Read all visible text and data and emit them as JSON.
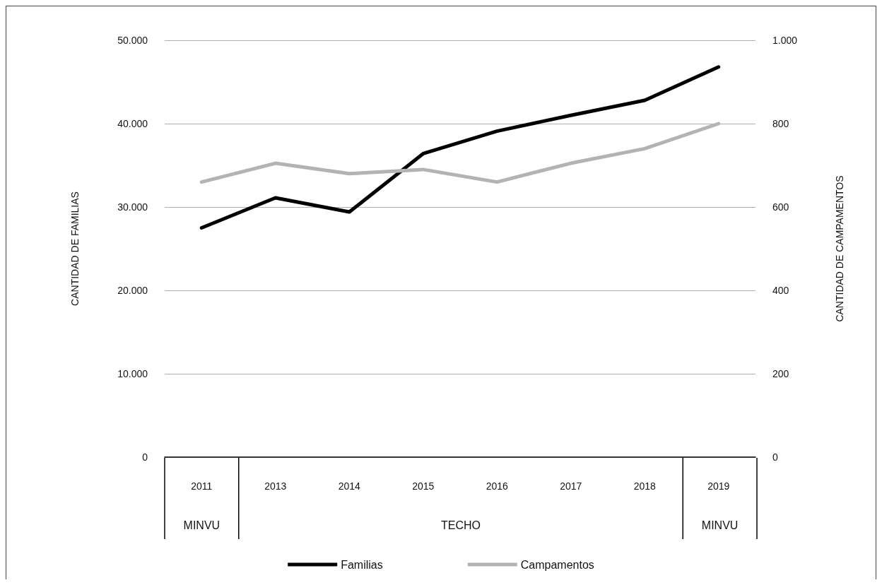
{
  "chart_data": {
    "type": "line",
    "ylabel": "CANTIDAD DE FAMILIAS",
    "y2label": "CANTIDAD DE CAMPAMENTOS",
    "categories": [
      "2011",
      "2013",
      "2014",
      "2015",
      "2016",
      "2017",
      "2018",
      "2019"
    ],
    "series": [
      {
        "name": "Familias",
        "color": "#000000",
        "values": [
          27500,
          31100,
          29400,
          36400,
          39100,
          41000,
          42800,
          46800
        ]
      },
      {
        "name": "Campamentos",
        "color": "#b3b3b3",
        "axis": "y2",
        "values": [
          660,
          705,
          680,
          690,
          660,
          705,
          740,
          800
        ]
      }
    ],
    "ylim": [
      0,
      50000
    ],
    "yticks": [
      0,
      {
        "value": 10000,
        "label": "10.000"
      },
      {
        "value": 20000,
        "label": "20.000"
      },
      {
        "value": 30000,
        "label": "30.000"
      },
      {
        "value": 40000,
        "label": "40.000"
      },
      {
        "value": 50000,
        "label": "50.000"
      }
    ],
    "y2lim": [
      0,
      1000
    ],
    "y2ticks": [
      0,
      200,
      400,
      600,
      800,
      {
        "value": 1000,
        "label": "1.000"
      }
    ],
    "annotations": [
      "MINVU",
      "TECHO",
      "MINVU"
    ],
    "grid": "y",
    "legend": "bottom",
    "marker": "none",
    "line_style": "solid"
  }
}
